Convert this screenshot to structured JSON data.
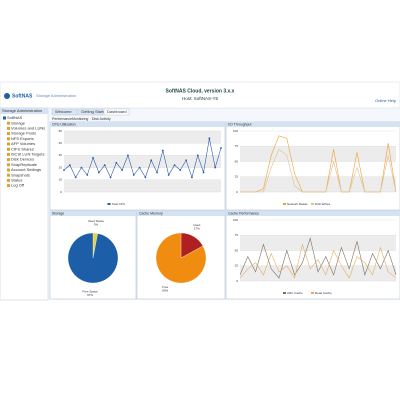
{
  "header": {
    "logo": "SoftNAS",
    "product": "Storage Administration",
    "title": "SoftNAS Cloud, version 3.x.x",
    "host": "Host: SoftNAS-Y5",
    "help": "Online Help"
  },
  "nav": {
    "title": "Storage Administration",
    "items": [
      "SoftNAS",
      "Storage",
      "Volumes and LUNs",
      "Storage Pools",
      "NFS Exports",
      "AFP Volumes",
      "CIFS Shares",
      "iSCSI LUN Targets",
      "Disk Devices",
      "SnapReplicate",
      "Account Settings",
      "Snapshots",
      "Status",
      "Log Off"
    ]
  },
  "tabs": [
    "Welcome",
    "Getting Started",
    "Dashboard"
  ],
  "subtabs": [
    "Performance",
    "Monitoring",
    "Disk Activity"
  ],
  "panels": [
    {
      "type": "line",
      "title": "CPU Utilization",
      "ylim": [
        0,
        50
      ],
      "yticks": [
        0,
        10,
        20,
        30,
        40,
        50
      ],
      "series": [
        {
          "name": "Total CPU",
          "color": "#2a5aa8",
          "values": [
            18,
            22,
            12,
            20,
            14,
            28,
            16,
            22,
            12,
            24,
            18,
            30,
            14,
            20,
            12,
            26,
            16,
            34,
            14,
            22,
            18,
            26,
            12,
            30,
            16,
            44,
            20,
            36
          ]
        }
      ]
    },
    {
      "type": "line",
      "title": "I/O Throughput",
      "ylim": [
        0,
        100
      ],
      "yticks": [
        0,
        25,
        50,
        75,
        100
      ],
      "series": [
        {
          "name": "Network Reads",
          "color": "#f0a030",
          "values": [
            0,
            0,
            0,
            5,
            60,
            92,
            88,
            30,
            0,
            0,
            0,
            0,
            70,
            0,
            0,
            65,
            0,
            0,
            0,
            80,
            0
          ]
        },
        {
          "name": "Disk Writes",
          "color": "#e0c090",
          "values": [
            0,
            0,
            0,
            0,
            40,
            70,
            60,
            10,
            0,
            0,
            0,
            0,
            50,
            0,
            0,
            40,
            0,
            0,
            0,
            60,
            0
          ]
        }
      ]
    },
    {
      "type": "pie",
      "title": "Storage",
      "values": [
        3,
        97
      ],
      "value_labels": [
        "3%",
        "97%"
      ],
      "labels": [
        "Used Space",
        "Free Space"
      ],
      "colors": [
        "#e8d040",
        "#1c5fa8"
      ]
    },
    {
      "type": "pie",
      "title": "Cache Memory",
      "values": [
        17,
        83
      ],
      "value_labels": [
        "17%",
        "83%"
      ],
      "labels": [
        "Used",
        "Free"
      ],
      "colors": [
        "#b02020",
        "#f08c10"
      ]
    },
    {
      "type": "line",
      "title": "Cache Performance",
      "ylim": [
        0,
        100
      ],
      "yticks": [
        0,
        25,
        50,
        75,
        100
      ],
      "series": [
        {
          "name": "ARC Cache",
          "color": "#807060",
          "values": [
            10,
            40,
            15,
            60,
            20,
            5,
            50,
            10,
            30,
            70,
            15,
            40,
            10,
            55,
            20,
            65,
            10,
            45,
            20,
            50,
            10
          ]
        },
        {
          "name": "Read Cache",
          "color": "#e0b060",
          "values": [
            5,
            20,
            30,
            10,
            45,
            15,
            25,
            5,
            60,
            20,
            35,
            10,
            50,
            25,
            5,
            40,
            30,
            10,
            55,
            15,
            5
          ]
        }
      ]
    }
  ]
}
